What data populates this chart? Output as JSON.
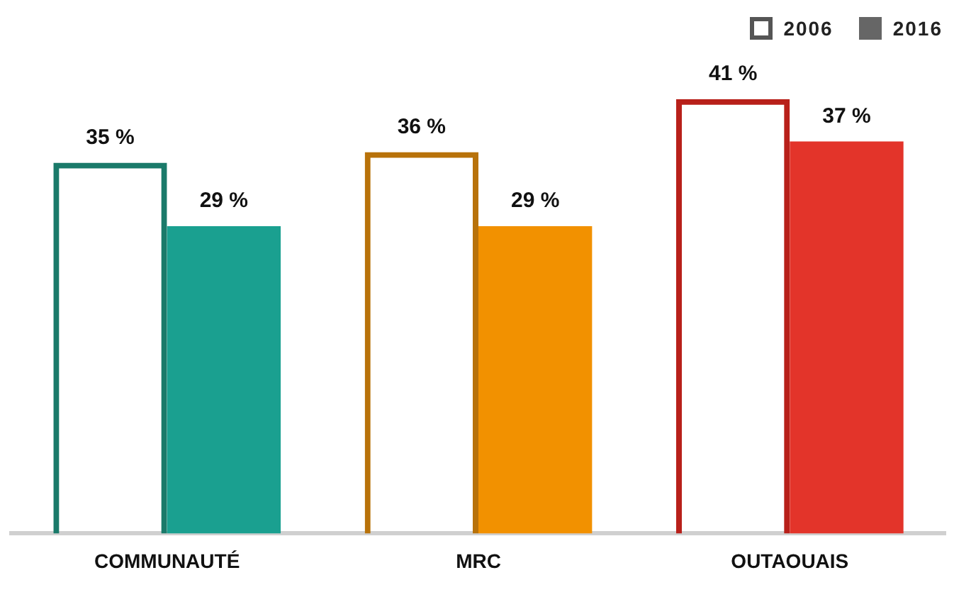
{
  "chart_data": {
    "type": "bar",
    "categories": [
      "COMMUNAUTÉ",
      "MRC",
      "OUTAOUAIS"
    ],
    "series": [
      {
        "name": "2006",
        "color": "#ffffff",
        "colors": [
          "#1a7a6a",
          "#b8720a",
          "#b8201a"
        ],
        "values": [
          35,
          36,
          41
        ],
        "value_labels": [
          "35 %",
          "36 %",
          "41 %"
        ]
      },
      {
        "name": "2016",
        "color": "#666666",
        "colors": [
          "#1aa090",
          "#f29100",
          "#e3342a"
        ],
        "values": [
          29,
          29,
          37
        ],
        "value_labels": [
          "29 %",
          "29 %",
          "37 %"
        ]
      }
    ],
    "legend": "top right",
    "grid": false
  }
}
